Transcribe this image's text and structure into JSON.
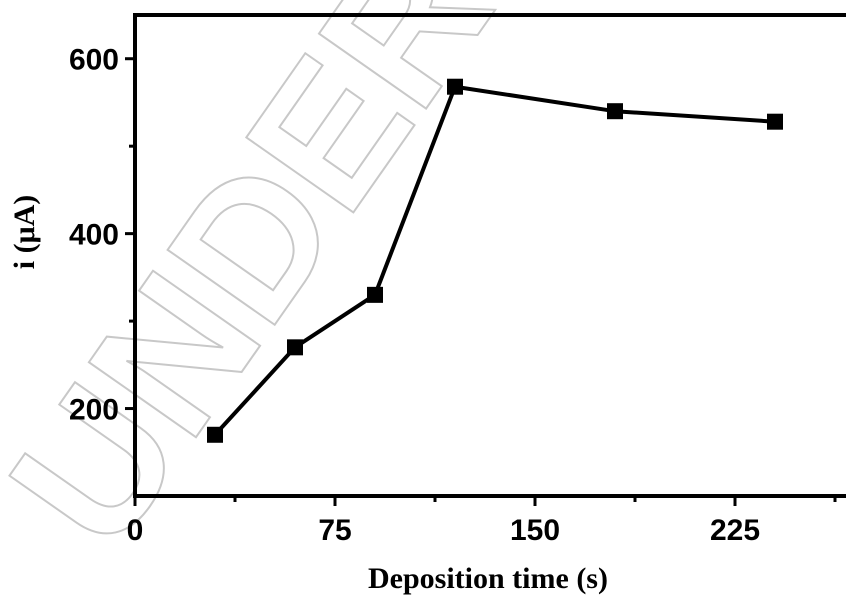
{
  "watermark": {
    "text": "UNDER PEER",
    "color": "#c8c8c8"
  },
  "chart_data": {
    "type": "line",
    "title": "",
    "xlabel": "Deposition time (s)",
    "ylabel": "i (μA)",
    "xlim": [
      0,
      270
    ],
    "ylim": [
      100,
      650
    ],
    "xticks": [
      0,
      75,
      150,
      225
    ],
    "xtick_labels": [
      "0",
      "75",
      "150",
      "225"
    ],
    "yticks": [
      200,
      400,
      600
    ],
    "ytick_labels": [
      "200",
      "400",
      "600"
    ],
    "grid": false,
    "legend": "none",
    "series": [
      {
        "marker": "square",
        "color": "#000000",
        "x": [
          30,
          60,
          90,
          120,
          180,
          240
        ],
        "y": [
          170,
          270,
          330,
          568,
          540,
          528
        ]
      }
    ]
  }
}
